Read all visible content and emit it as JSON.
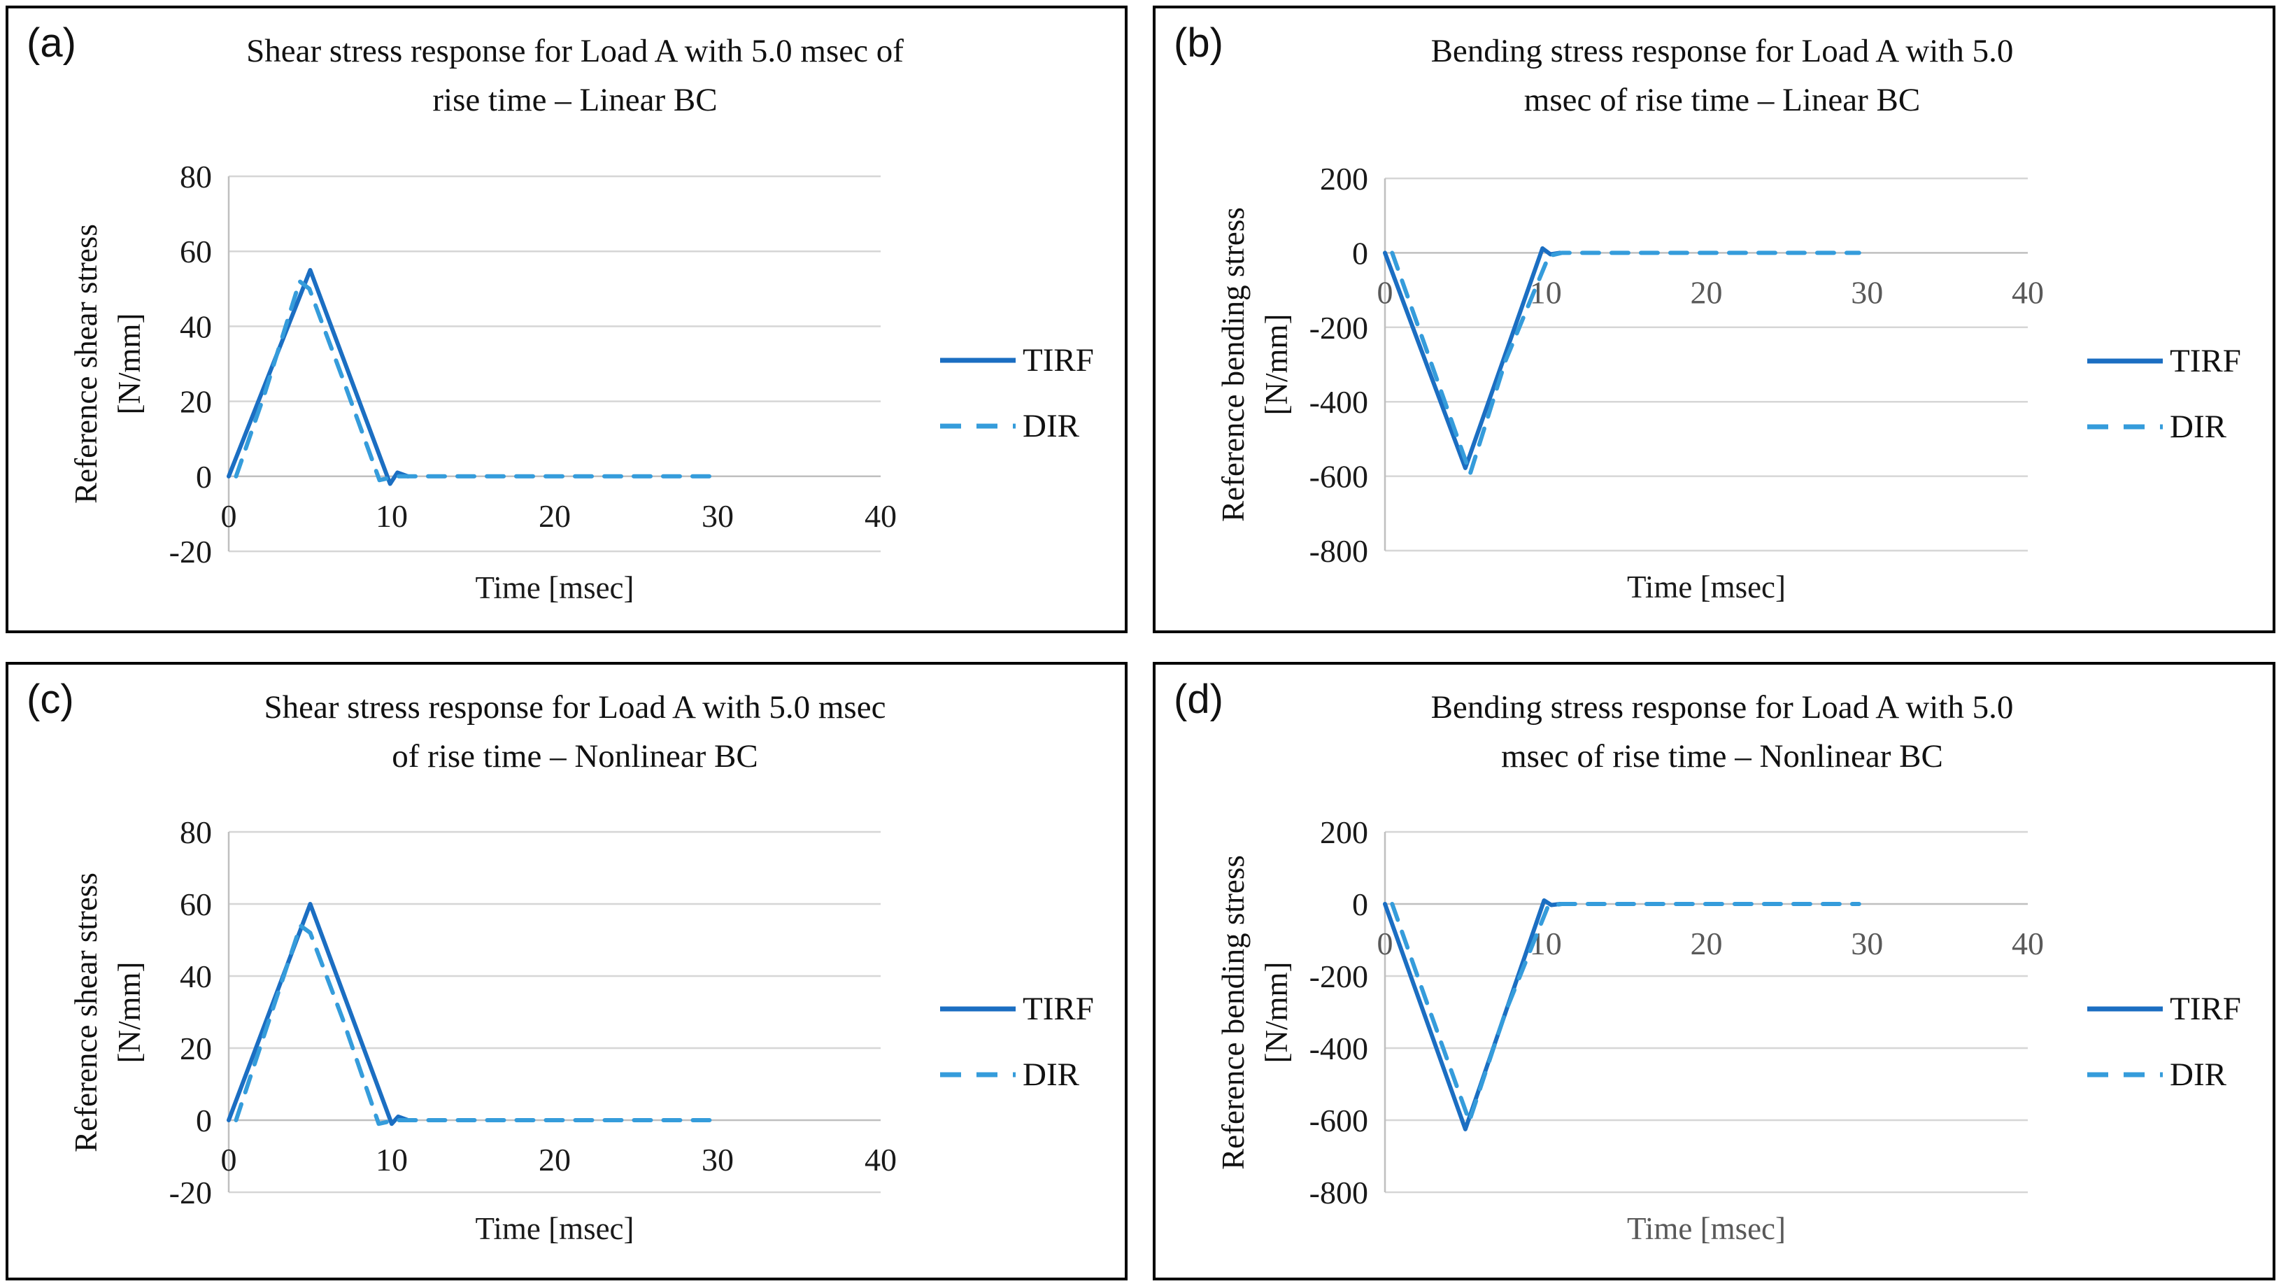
{
  "figure": {
    "description": "2x2 grid of Excel-style line charts comparing TIRF and DIR stress responses",
    "colors": {
      "tirf_line": "#1b6ec2",
      "dir_line": "#359cdb",
      "gridline": "#d6d6d6",
      "axis_line": "#bfbfbf",
      "text": "#1a1a1a",
      "gray_text": "#595959",
      "panel_border": "#000000",
      "background": "#ffffff"
    }
  },
  "panels": [
    {
      "letter": "(a)",
      "title_line1": "Shear stress response for Load A with 5.0 msec of",
      "title_line2": "rise time – Linear BC",
      "ylabel_line1": "Reference shear stress",
      "ylabel_line2": "[N/mm]",
      "xlabel": "Time [msec]",
      "xlabel_color": "#1a1a1a",
      "legend": [
        "TIRF",
        "DIR"
      ]
    },
    {
      "letter": "(b)",
      "title_line1": "Bending stress response for Load A with 5.0",
      "title_line2": "msec of rise time – Linear BC",
      "ylabel_line1": "Reference bending stress",
      "ylabel_line2": "[N/mm]",
      "xlabel": "Time [msec]",
      "xlabel_color": "#1a1a1a",
      "legend": [
        "TIRF",
        "DIR"
      ]
    },
    {
      "letter": "(c)",
      "title_line1": "Shear stress response for Load A with 5.0 msec",
      "title_line2": "of rise time – Nonlinear BC",
      "ylabel_line1": "Reference shear stress",
      "ylabel_line2": "[N/mm]",
      "xlabel": "Time [msec]",
      "xlabel_color": "#1a1a1a",
      "legend": [
        "TIRF",
        "DIR"
      ]
    },
    {
      "letter": "(d)",
      "title_line1": "Bending stress response for Load A with 5.0",
      "title_line2": "msec of rise time – Nonlinear BC",
      "ylabel_line1": "Reference bending stress",
      "ylabel_line2": "[N/mm]",
      "xlabel": "Time [msec]",
      "xlabel_color": "#595959",
      "legend": [
        "TIRF",
        "DIR"
      ]
    }
  ],
  "chart_data": [
    {
      "type": "line",
      "title": "Shear stress response for Load A with 5.0 msec of rise time – Linear BC",
      "xlabel": "Time [msec]",
      "ylabel": "Reference shear stress [N/mm]",
      "xlim": [
        0,
        40
      ],
      "ylim": [
        -20,
        80
      ],
      "x_ticks": [
        0,
        10,
        20,
        30,
        40
      ],
      "y_ticks": [
        80,
        60,
        40,
        20,
        0,
        -20
      ],
      "x_tick_color": "#1a1a1a",
      "grid": true,
      "legend_position": "right",
      "series": [
        {
          "name": "TIRF",
          "style": "solid",
          "points": [
            [
              0,
              0
            ],
            [
              5,
              55
            ],
            [
              9.9,
              -2
            ],
            [
              10.35,
              1
            ],
            [
              11,
              0
            ]
          ]
        },
        {
          "name": "DIR",
          "style": "dashed",
          "points": [
            [
              0.45,
              0
            ],
            [
              2.2,
              22
            ],
            [
              4.35,
              52
            ],
            [
              4.95,
              50
            ],
            [
              7,
              26
            ],
            [
              9.25,
              -1
            ],
            [
              10.3,
              0
            ],
            [
              29.5,
              0
            ]
          ]
        }
      ]
    },
    {
      "type": "line",
      "title": "Bending stress response for Load A with 5.0 msec of rise time – Linear BC",
      "xlabel": "Time [msec]",
      "ylabel": "Reference bending stress [N/mm]",
      "xlim": [
        0,
        40
      ],
      "ylim": [
        -800,
        200
      ],
      "x_ticks": [
        0,
        10,
        20,
        30,
        40
      ],
      "y_ticks": [
        200,
        0,
        -200,
        -400,
        -600,
        -800
      ],
      "x_tick_color": "#595959",
      "grid": true,
      "legend_position": "right",
      "series": [
        {
          "name": "TIRF",
          "style": "solid",
          "points": [
            [
              0,
              0
            ],
            [
              5,
              -578
            ],
            [
              9.8,
              12
            ],
            [
              10.3,
              -4
            ],
            [
              10.9,
              0
            ]
          ]
        },
        {
          "name": "DIR",
          "style": "dashed",
          "points": [
            [
              0.45,
              0
            ],
            [
              2.5,
              -250
            ],
            [
              5.3,
              -593
            ],
            [
              7.5,
              -290
            ],
            [
              10.2,
              -8
            ],
            [
              11,
              0
            ],
            [
              29.5,
              0
            ]
          ]
        }
      ]
    },
    {
      "type": "line",
      "title": "Shear stress response for Load A with 5.0 msec of rise time – Nonlinear BC",
      "xlabel": "Time [msec]",
      "ylabel": "Reference shear stress [N/mm]",
      "xlim": [
        0,
        40
      ],
      "ylim": [
        -20,
        80
      ],
      "x_ticks": [
        0,
        10,
        20,
        30,
        40
      ],
      "y_ticks": [
        80,
        60,
        40,
        20,
        0,
        -20
      ],
      "x_tick_color": "#1a1a1a",
      "grid": true,
      "legend_position": "right",
      "series": [
        {
          "name": "TIRF",
          "style": "solid",
          "points": [
            [
              0,
              0
            ],
            [
              5,
              60
            ],
            [
              10,
              -1
            ],
            [
              10.4,
              1
            ],
            [
              11,
              0
            ]
          ]
        },
        {
          "name": "DIR",
          "style": "dashed",
          "points": [
            [
              0.45,
              0
            ],
            [
              2.2,
              24
            ],
            [
              4.4,
              54
            ],
            [
              5,
              52
            ],
            [
              7,
              28
            ],
            [
              9.2,
              -1
            ],
            [
              10.2,
              0
            ],
            [
              29.5,
              0
            ]
          ]
        }
      ]
    },
    {
      "type": "line",
      "title": "Bending stress response for Load A with 5.0 msec of rise time – Nonlinear BC",
      "xlabel": "Time [msec]",
      "ylabel": "Reference bending stress [N/mm]",
      "xlim": [
        0,
        40
      ],
      "ylim": [
        -800,
        200
      ],
      "x_ticks": [
        0,
        10,
        20,
        30,
        40
      ],
      "y_ticks": [
        200,
        0,
        -200,
        -400,
        -600,
        -800
      ],
      "x_tick_color": "#595959",
      "grid": true,
      "legend_position": "right",
      "series": [
        {
          "name": "TIRF",
          "style": "solid",
          "points": [
            [
              0,
              0
            ],
            [
              5,
              -625
            ],
            [
              9.9,
              10
            ],
            [
              10.35,
              -3
            ],
            [
              10.9,
              0
            ]
          ]
        },
        {
          "name": "DIR",
          "style": "dashed",
          "points": [
            [
              0.45,
              0
            ],
            [
              2.5,
              -260
            ],
            [
              5.25,
              -603
            ],
            [
              7.5,
              -300
            ],
            [
              10.15,
              -6
            ],
            [
              11,
              0
            ],
            [
              29.5,
              0
            ]
          ]
        }
      ]
    }
  ]
}
